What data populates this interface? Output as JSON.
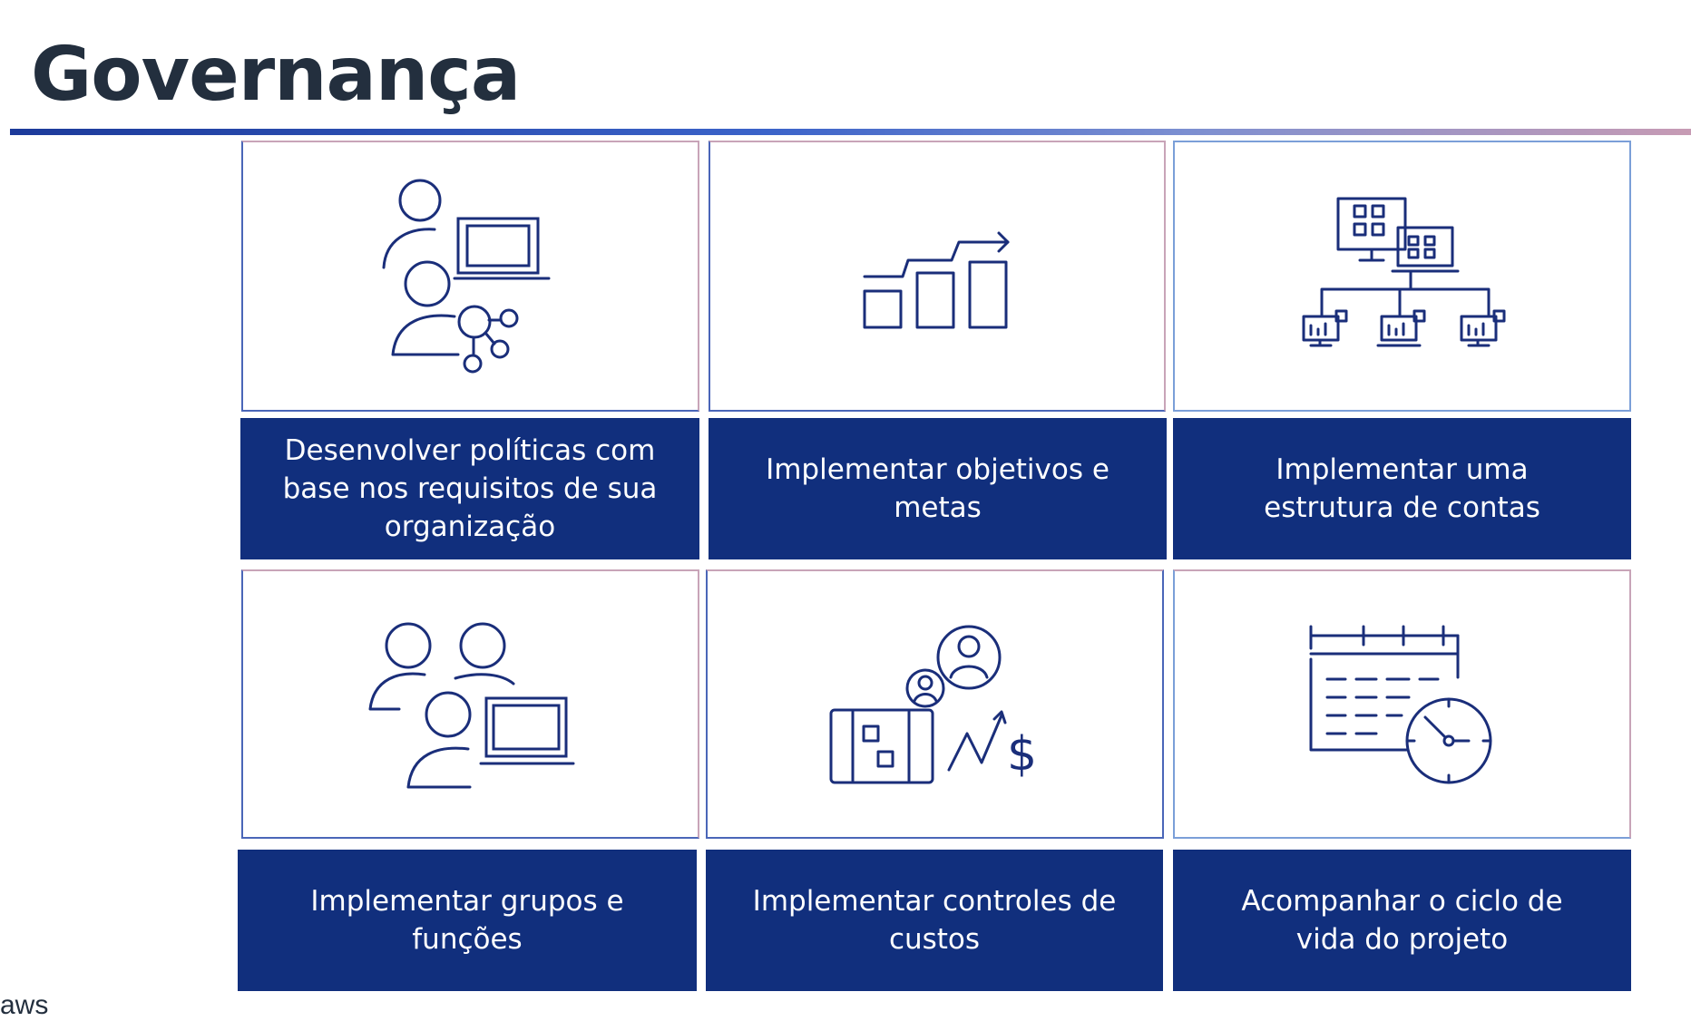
{
  "page": {
    "title": "Governança"
  },
  "cards": [
    {
      "label": "Desenvolver políticas com base nos requisitos de sua organização",
      "icon": "users-policy-icon"
    },
    {
      "label": "Implementar objetivos e metas",
      "icon": "growth-chart-icon"
    },
    {
      "label": "Implementar uma estrutura de contas",
      "icon": "account-structure-icon"
    },
    {
      "label": "Implementar grupos e funções",
      "icon": "user-groups-icon"
    },
    {
      "label": "Implementar controles de custos",
      "icon": "cost-control-icon"
    },
    {
      "label": "Acompanhar o ciclo de vida do projeto",
      "icon": "calendar-clock-icon"
    }
  ],
  "footer": {
    "logo": "aws"
  },
  "colors": {
    "accent": "#112f7d",
    "title": "#232f3e",
    "icon": "#1a2e7a"
  }
}
